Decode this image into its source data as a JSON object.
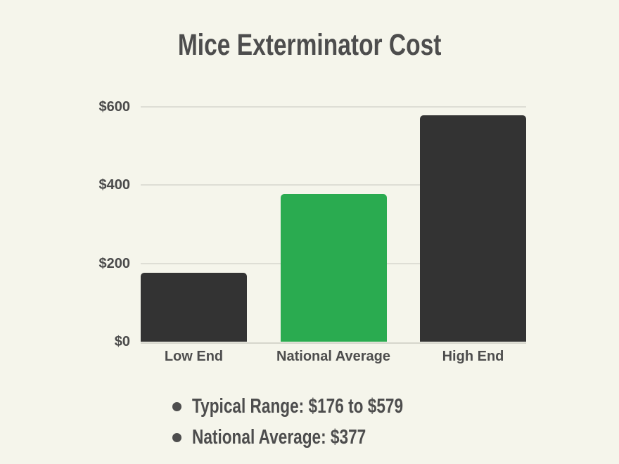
{
  "page": {
    "background": "#f5f5eb"
  },
  "title": {
    "text": "Mice Exterminator Cost",
    "color": "#4d4d4d"
  },
  "chart_data": {
    "type": "bar",
    "title": "Mice Exterminator Cost",
    "categories": [
      "Low End",
      "National Average",
      "High End"
    ],
    "values": [
      176,
      377,
      579
    ],
    "bar_colors": [
      "#333333",
      "#2aab50",
      "#333333"
    ],
    "xlabel": "",
    "ylabel": "",
    "ylim": [
      0,
      600
    ],
    "yticks": [
      0,
      200,
      400,
      600
    ],
    "ytick_labels": [
      "$0",
      "$200",
      "$400",
      "$600"
    ],
    "grid": true,
    "gridline_color": "#deded5",
    "axis_line_color": "#d6d6cc",
    "tick_label_color": "#4a4a4a",
    "legend": "none"
  },
  "notes": {
    "items": [
      "Typical Range: $176 to $579",
      "National Average: $377"
    ]
  }
}
